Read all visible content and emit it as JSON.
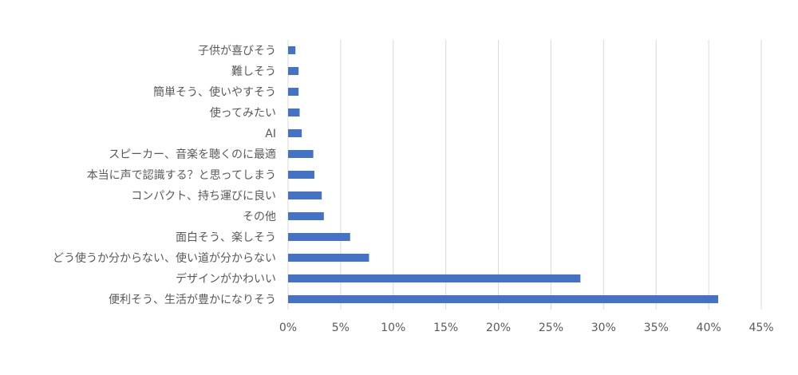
{
  "chart_data": {
    "type": "bar",
    "orientation": "horizontal",
    "title": "",
    "xlabel": "",
    "ylabel": "",
    "xlim": [
      0,
      45
    ],
    "x_ticks": [
      "0%",
      "5%",
      "10%",
      "15%",
      "20%",
      "25%",
      "30%",
      "35%",
      "40%",
      "45%"
    ],
    "grid": "vertical",
    "legend": "none",
    "bar_color": "#4472C4",
    "categories": [
      "子供が喜びそう",
      "難しそう",
      "簡単そう、使いやすそう",
      "使ってみたい",
      "AI",
      "スピーカー、音楽を聴くのに最適",
      "本当に声で認識する？と思ってしまう",
      "コンパクト、持ち運びに良い",
      "その他",
      "面白そう、楽しそう",
      "どう使うか分からない、使い道が分からない",
      "デザインがかわいい",
      "便利そう、生活が豊かになりそう"
    ],
    "values": [
      0.7,
      1.0,
      1.0,
      1.1,
      1.3,
      2.4,
      2.5,
      3.2,
      3.4,
      5.9,
      7.7,
      27.8,
      40.9
    ]
  }
}
